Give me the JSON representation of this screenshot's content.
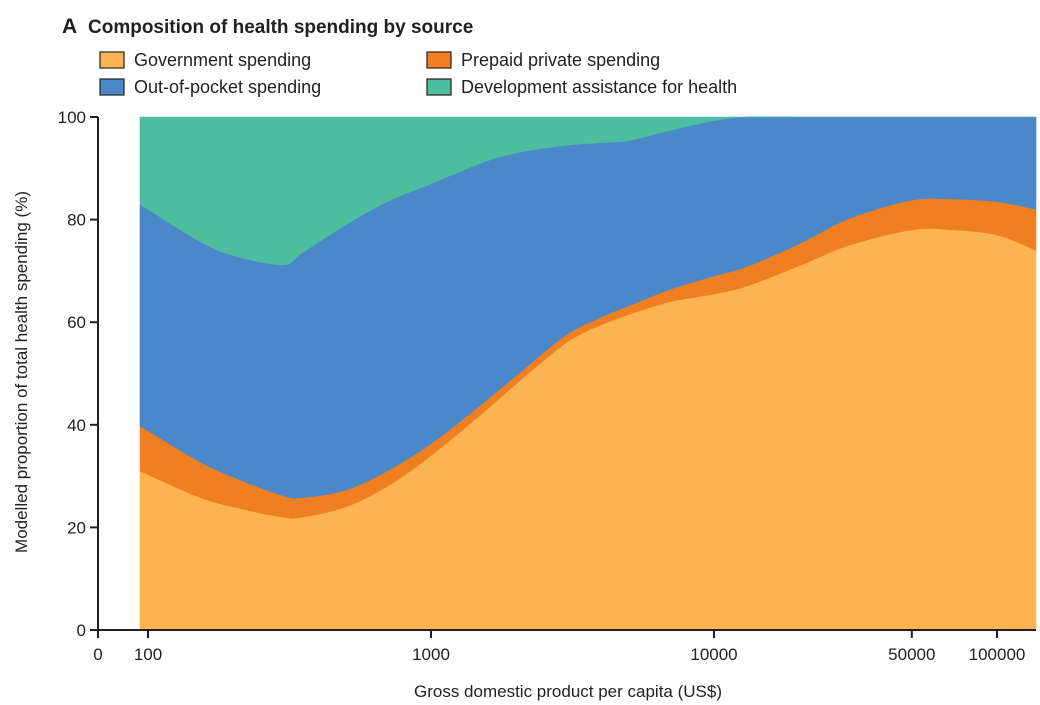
{
  "panel_letter": "A",
  "chart_data": {
    "type": "area",
    "stacked": true,
    "title": "Composition of health spending by source",
    "xlabel": "Gross domestic product per capita (US$)",
    "ylabel": "Modelled proportion of total health spending (%)",
    "xscale": "log",
    "xlim": [
      90,
      150000
    ],
    "ylim": [
      0,
      100
    ],
    "xticks": [
      {
        "value": 100,
        "label": "100"
      },
      {
        "value": 1000,
        "label": "1000"
      },
      {
        "value": 10000,
        "label": "10000"
      },
      {
        "value": 50000,
        "label": "50000"
      },
      {
        "value": 100000,
        "label": "100000"
      }
    ],
    "xtick_zero_label": "0",
    "yticks": [
      {
        "value": 0,
        "label": "0"
      },
      {
        "value": 20,
        "label": "20"
      },
      {
        "value": 40,
        "label": "40"
      },
      {
        "value": 60,
        "label": "60"
      },
      {
        "value": 80,
        "label": "80"
      },
      {
        "value": 100,
        "label": "100"
      }
    ],
    "grid": false,
    "legend_position": "top-left",
    "x": [
      90,
      150,
      200,
      300,
      350,
      500,
      700,
      1000,
      1500,
      2000,
      3000,
      4000,
      5000,
      7000,
      10000,
      13000,
      20000,
      30000,
      50000,
      70000,
      100000,
      150000
    ],
    "series": [
      {
        "name": "Government spending",
        "color": "#fbb451",
        "values": [
          31,
          26,
          24,
          22,
          22,
          24,
          28,
          34,
          42,
          48,
          56,
          59.5,
          61.5,
          64,
          65.5,
          67,
          71,
          75,
          78,
          78,
          77,
          74
        ]
      },
      {
        "name": "Prepaid private spending",
        "color": "#f07f22",
        "values": [
          8.8,
          7.0,
          5.8,
          4.2,
          3.8,
          3.3,
          3.0,
          2.3,
          1.9,
          1.6,
          1.5,
          1.5,
          1.7,
          2.4,
          3.5,
          3.8,
          4.3,
          5.2,
          5.8,
          6.0,
          6.5,
          8.0
        ]
      },
      {
        "name": "Out-of-pocket spending",
        "color": "#4a88c9",
        "values": [
          43.2,
          43,
          43.2,
          45.0,
          47.7,
          51.7,
          52.5,
          50.7,
          47.1,
          43.4,
          37.0,
          34.0,
          32.2,
          31.0,
          30.3,
          29.2,
          24.7,
          19.8,
          16.2,
          16.0,
          16.5,
          18.0
        ]
      },
      {
        "name": "Development assistance for health",
        "color": "#4dbf9f",
        "values": [
          17,
          24,
          27,
          28.8,
          26.5,
          21,
          16.5,
          13,
          9,
          7,
          5.5,
          5,
          4.6,
          2.6,
          0.7,
          0,
          0,
          0,
          0,
          0,
          0,
          0
        ]
      }
    ]
  }
}
